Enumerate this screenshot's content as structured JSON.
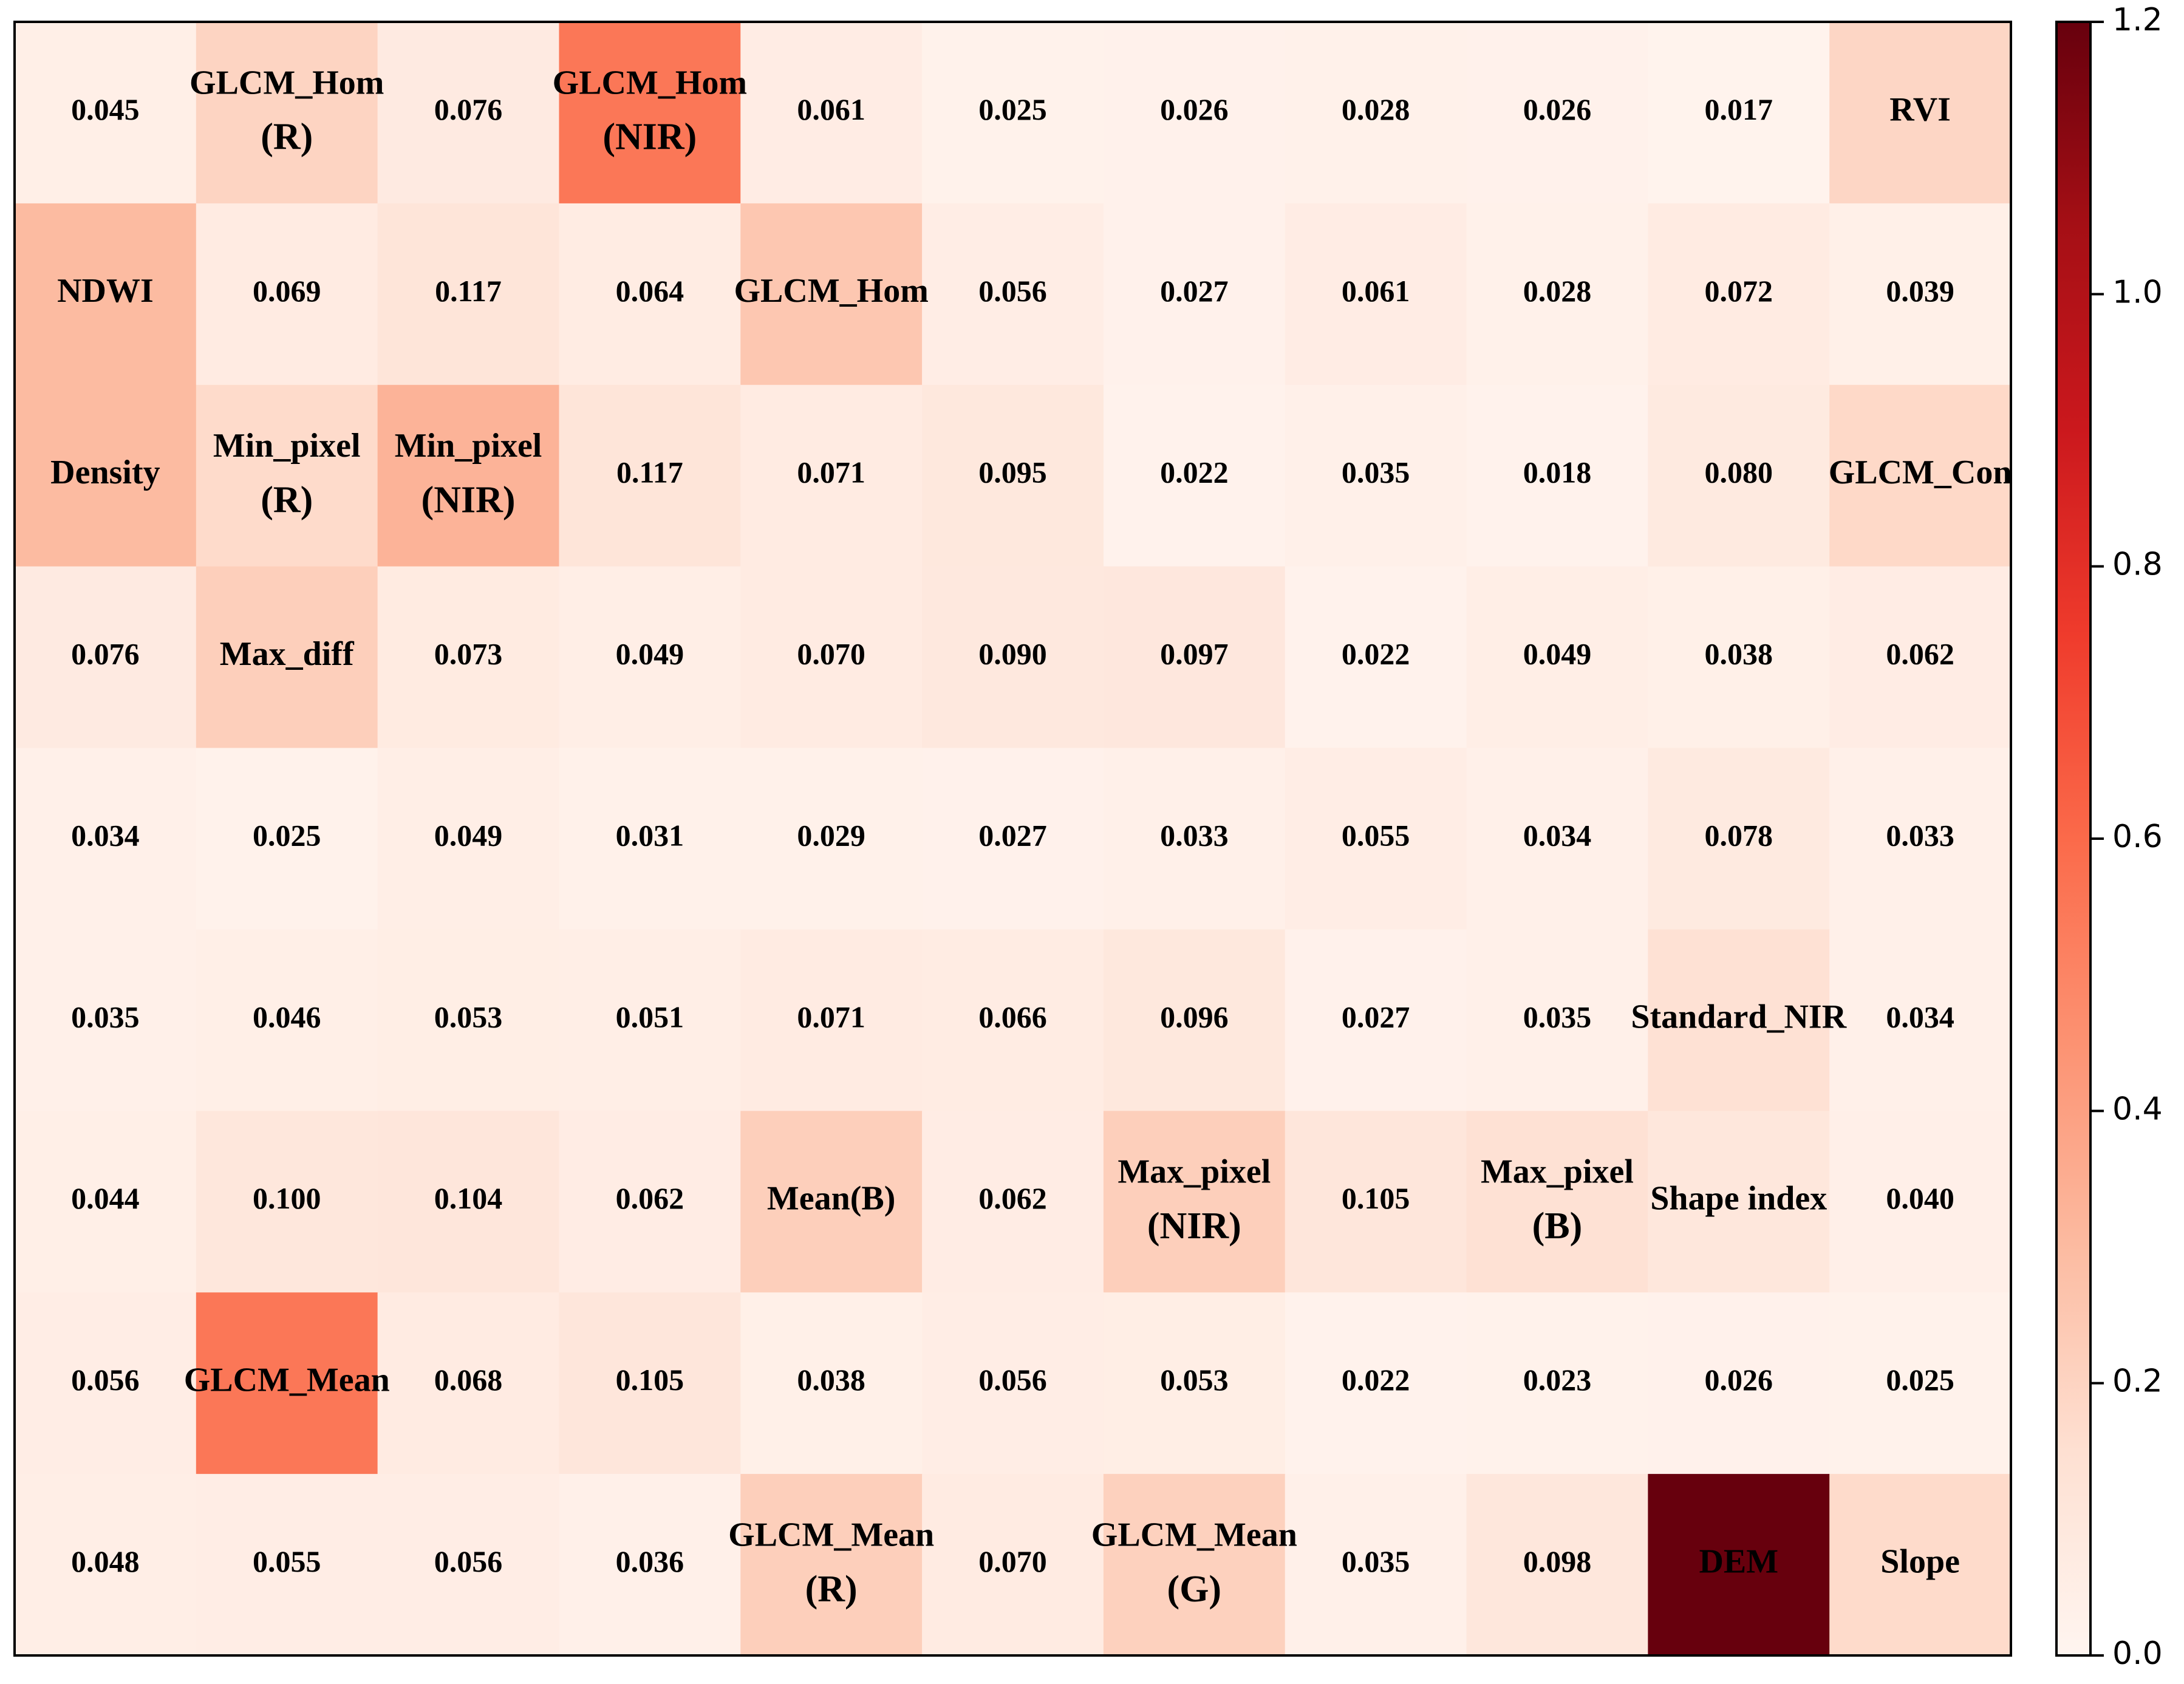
{
  "chart_data": {
    "type": "heatmap",
    "title": "",
    "xlabel": "",
    "ylabel": "",
    "rows": 9,
    "cols": 11,
    "colormap": "Reds",
    "colorbar": {
      "range": [
        0.0,
        1.2
      ],
      "ticks": [
        "0.0",
        "0.2",
        "0.4",
        "0.6",
        "0.8",
        "1.0",
        "1.2"
      ],
      "tick_values": [
        0.0,
        0.2,
        0.4,
        0.6,
        0.8,
        1.0,
        1.2
      ],
      "placement": "right"
    },
    "cells": [
      [
        {
          "value": 0.045,
          "label": [
            "0.045"
          ]
        },
        {
          "value": 0.2,
          "label": [
            "GLCM_Hom",
            "(R)"
          ]
        },
        {
          "value": 0.076,
          "label": [
            "0.076"
          ]
        },
        {
          "value": 0.55,
          "label": [
            "GLCM_Hom",
            "(NIR)"
          ]
        },
        {
          "value": 0.061,
          "label": [
            "0.061"
          ]
        },
        {
          "value": 0.025,
          "label": [
            "0.025"
          ]
        },
        {
          "value": 0.026,
          "label": [
            "0.026"
          ]
        },
        {
          "value": 0.028,
          "label": [
            "0.028"
          ]
        },
        {
          "value": 0.026,
          "label": [
            "0.026"
          ]
        },
        {
          "value": 0.017,
          "label": [
            "0.017"
          ]
        },
        {
          "value": 0.19,
          "label": [
            "RVI"
          ]
        }
      ],
      [
        {
          "value": 0.3,
          "label": [
            "NDWI"
          ]
        },
        {
          "value": 0.069,
          "label": [
            "0.069"
          ]
        },
        {
          "value": 0.117,
          "label": [
            "0.117"
          ]
        },
        {
          "value": 0.064,
          "label": [
            "0.064"
          ]
        },
        {
          "value": 0.25,
          "label": [
            "GLCM_Hom"
          ]
        },
        {
          "value": 0.056,
          "label": [
            "0.056"
          ]
        },
        {
          "value": 0.027,
          "label": [
            "0.027"
          ]
        },
        {
          "value": 0.061,
          "label": [
            "0.061"
          ]
        },
        {
          "value": 0.028,
          "label": [
            "0.028"
          ]
        },
        {
          "value": 0.072,
          "label": [
            "0.072"
          ]
        },
        {
          "value": 0.039,
          "label": [
            "0.039"
          ]
        }
      ],
      [
        {
          "value": 0.3,
          "label": [
            "Density"
          ]
        },
        {
          "value": 0.17,
          "label": [
            "Min_pixel",
            "(R)"
          ]
        },
        {
          "value": 0.33,
          "label": [
            "Min_pixel",
            "(NIR)"
          ]
        },
        {
          "value": 0.117,
          "label": [
            "0.117"
          ]
        },
        {
          "value": 0.071,
          "label": [
            "0.071"
          ]
        },
        {
          "value": 0.095,
          "label": [
            "0.095"
          ]
        },
        {
          "value": 0.022,
          "label": [
            "0.022"
          ]
        },
        {
          "value": 0.035,
          "label": [
            "0.035"
          ]
        },
        {
          "value": 0.018,
          "label": [
            "0.018"
          ]
        },
        {
          "value": 0.08,
          "label": [
            "0.080"
          ]
        },
        {
          "value": 0.18,
          "label": [
            "GLCM_Con"
          ]
        }
      ],
      [
        {
          "value": 0.076,
          "label": [
            "0.076"
          ]
        },
        {
          "value": 0.22,
          "label": [
            "Max_diff"
          ]
        },
        {
          "value": 0.073,
          "label": [
            "0.073"
          ]
        },
        {
          "value": 0.049,
          "label": [
            "0.049"
          ]
        },
        {
          "value": 0.07,
          "label": [
            "0.070"
          ]
        },
        {
          "value": 0.09,
          "label": [
            "0.090"
          ]
        },
        {
          "value": 0.097,
          "label": [
            "0.097"
          ]
        },
        {
          "value": 0.022,
          "label": [
            "0.022"
          ]
        },
        {
          "value": 0.049,
          "label": [
            "0.049"
          ]
        },
        {
          "value": 0.038,
          "label": [
            "0.038"
          ]
        },
        {
          "value": 0.062,
          "label": [
            "0.062"
          ]
        }
      ],
      [
        {
          "value": 0.034,
          "label": [
            "0.034"
          ]
        },
        {
          "value": 0.025,
          "label": [
            "0.025"
          ]
        },
        {
          "value": 0.049,
          "label": [
            "0.049"
          ]
        },
        {
          "value": 0.031,
          "label": [
            "0.031"
          ]
        },
        {
          "value": 0.029,
          "label": [
            "0.029"
          ]
        },
        {
          "value": 0.027,
          "label": [
            "0.027"
          ]
        },
        {
          "value": 0.033,
          "label": [
            "0.033"
          ]
        },
        {
          "value": 0.055,
          "label": [
            "0.055"
          ]
        },
        {
          "value": 0.034,
          "label": [
            "0.034"
          ]
        },
        {
          "value": 0.078,
          "label": [
            "0.078"
          ]
        },
        {
          "value": 0.033,
          "label": [
            "0.033"
          ]
        }
      ],
      [
        {
          "value": 0.035,
          "label": [
            "0.035"
          ]
        },
        {
          "value": 0.046,
          "label": [
            "0.046"
          ]
        },
        {
          "value": 0.053,
          "label": [
            "0.053"
          ]
        },
        {
          "value": 0.051,
          "label": [
            "0.051"
          ]
        },
        {
          "value": 0.071,
          "label": [
            "0.071"
          ]
        },
        {
          "value": 0.066,
          "label": [
            "0.066"
          ]
        },
        {
          "value": 0.096,
          "label": [
            "0.096"
          ]
        },
        {
          "value": 0.027,
          "label": [
            "0.027"
          ]
        },
        {
          "value": 0.035,
          "label": [
            "0.035"
          ]
        },
        {
          "value": 0.14,
          "label": [
            "Standard_NIR"
          ]
        },
        {
          "value": 0.034,
          "label": [
            "0.034"
          ]
        }
      ],
      [
        {
          "value": 0.044,
          "label": [
            "0.044"
          ]
        },
        {
          "value": 0.1,
          "label": [
            "0.100"
          ]
        },
        {
          "value": 0.104,
          "label": [
            "0.104"
          ]
        },
        {
          "value": 0.062,
          "label": [
            "0.062"
          ]
        },
        {
          "value": 0.22,
          "label": [
            "Mean(B)"
          ]
        },
        {
          "value": 0.062,
          "label": [
            "0.062"
          ]
        },
        {
          "value": 0.22,
          "label": [
            "Max_pixel",
            "(NIR)"
          ]
        },
        {
          "value": 0.105,
          "label": [
            "0.105"
          ]
        },
        {
          "value": 0.14,
          "label": [
            "Max_pixel",
            "(B)"
          ]
        },
        {
          "value": 0.1,
          "label": [
            "Shape index"
          ]
        },
        {
          "value": 0.04,
          "label": [
            "0.040"
          ]
        }
      ],
      [
        {
          "value": 0.056,
          "label": [
            "0.056"
          ]
        },
        {
          "value": 0.55,
          "label": [
            "GLCM_Mean"
          ]
        },
        {
          "value": 0.068,
          "label": [
            "0.068"
          ]
        },
        {
          "value": 0.105,
          "label": [
            "0.105"
          ]
        },
        {
          "value": 0.038,
          "label": [
            "0.038"
          ]
        },
        {
          "value": 0.056,
          "label": [
            "0.056"
          ]
        },
        {
          "value": 0.053,
          "label": [
            "0.053"
          ]
        },
        {
          "value": 0.022,
          "label": [
            "0.022"
          ]
        },
        {
          "value": 0.023,
          "label": [
            "0.023"
          ]
        },
        {
          "value": 0.026,
          "label": [
            "0.026"
          ]
        },
        {
          "value": 0.025,
          "label": [
            "0.025"
          ]
        }
      ],
      [
        {
          "value": 0.048,
          "label": [
            "0.048"
          ]
        },
        {
          "value": 0.055,
          "label": [
            "0.055"
          ]
        },
        {
          "value": 0.056,
          "label": [
            "0.056"
          ]
        },
        {
          "value": 0.036,
          "label": [
            "0.036"
          ]
        },
        {
          "value": 0.22,
          "label": [
            "GLCM_Mean",
            "(R)"
          ]
        },
        {
          "value": 0.07,
          "label": [
            "0.070"
          ]
        },
        {
          "value": 0.21,
          "label": [
            "GLCM_Mean",
            "(G)"
          ]
        },
        {
          "value": 0.035,
          "label": [
            "0.035"
          ]
        },
        {
          "value": 0.098,
          "label": [
            "0.098"
          ]
        },
        {
          "value": 1.2,
          "label": [
            "DEM"
          ]
        },
        {
          "value": 0.17,
          "label": [
            "Slope"
          ]
        }
      ]
    ]
  }
}
